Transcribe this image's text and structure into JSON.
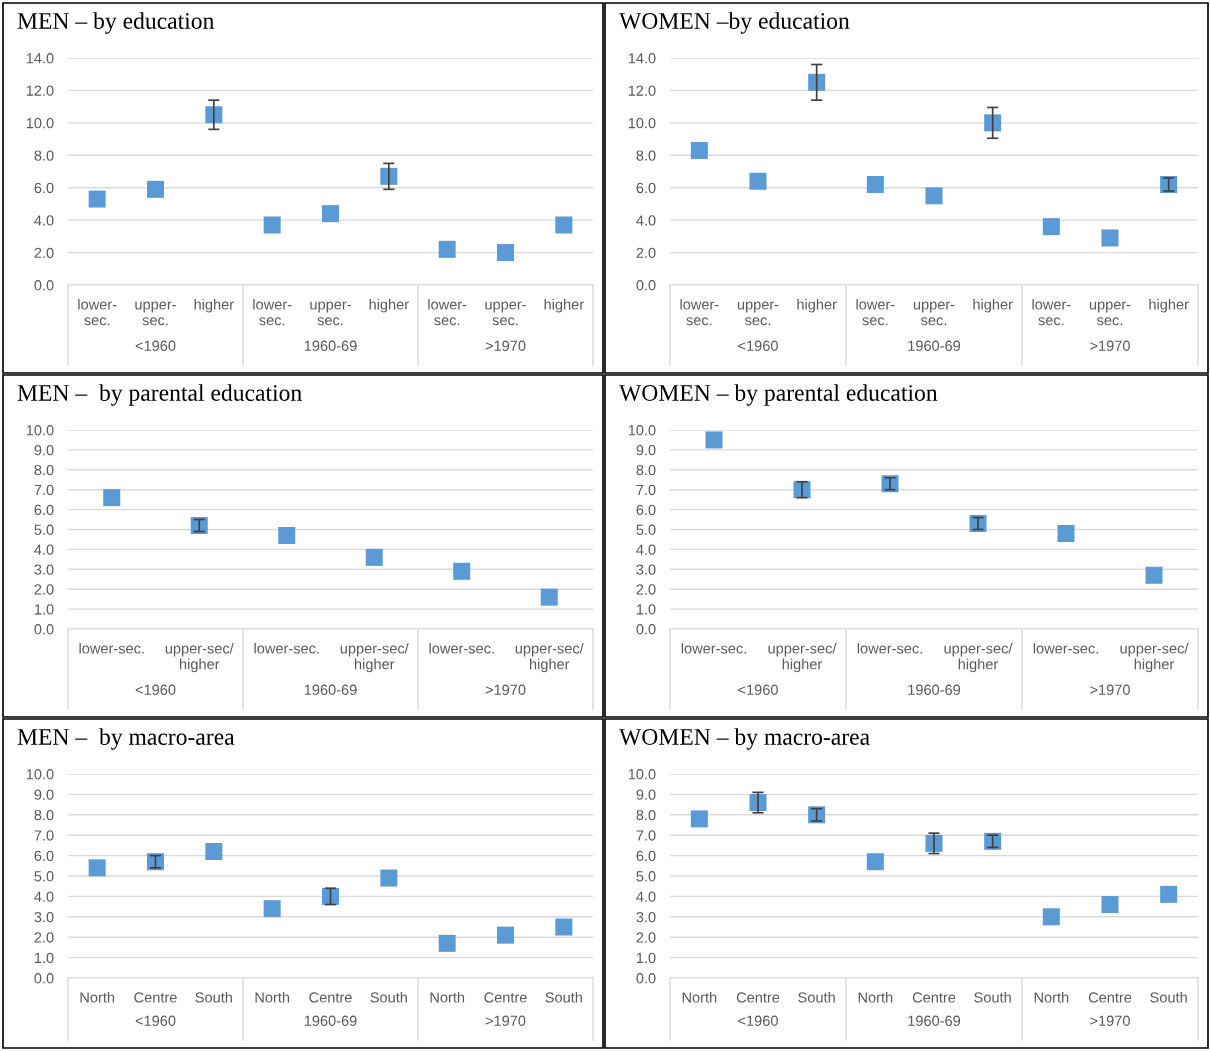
{
  "chart_data": [
    {
      "type": "scatter",
      "title": "MEN – by education",
      "categories": [
        "lower-\nsec.",
        "upper-\nsec.",
        "higher",
        "lower-\nsec.",
        "upper-\nsec.",
        "higher",
        "lower-\nsec.",
        "upper-\nsec.",
        "higher"
      ],
      "values": [
        5.3,
        5.9,
        10.5,
        3.7,
        4.4,
        6.7,
        2.2,
        2.0,
        3.7
      ],
      "errors": [
        null,
        null,
        0.9,
        null,
        null,
        0.8,
        null,
        null,
        null
      ],
      "color": "#5b9bd5",
      "marker": "square",
      "grid": "y",
      "ylim": [
        0,
        14
      ],
      "yticks": [
        {
          "value": 0,
          "label": "0.0"
        },
        {
          "value": 2,
          "label": "2.0"
        },
        {
          "value": 4,
          "label": "4.0"
        },
        {
          "value": 6,
          "label": "6.0"
        },
        {
          "value": 8,
          "label": "8.0"
        },
        {
          "value": 10,
          "label": "10.0"
        },
        {
          "value": 12,
          "label": "12.0"
        },
        {
          "value": 14,
          "label": "14.0"
        }
      ],
      "annotations": [
        "<1960",
        "1960-69",
        ">1970"
      ]
    },
    {
      "type": "scatter",
      "title": "WOMEN –by education",
      "categories": [
        "lower-\nsec.",
        "upper-\nsec.",
        "higher",
        "lower-\nsec.",
        "upper-\nsec.",
        "higher",
        "lower-\nsec.",
        "upper-\nsec.",
        "higher"
      ],
      "values": [
        8.3,
        6.4,
        12.5,
        6.2,
        5.5,
        10.0,
        3.6,
        2.9,
        6.2
      ],
      "errors": [
        null,
        null,
        1.1,
        null,
        null,
        0.95,
        null,
        null,
        0.4
      ],
      "color": "#5b9bd5",
      "marker": "square",
      "grid": "y",
      "ylim": [
        0,
        14
      ],
      "yticks": [
        {
          "value": 0,
          "label": "0.0"
        },
        {
          "value": 2,
          "label": "2.0"
        },
        {
          "value": 4,
          "label": "4.0"
        },
        {
          "value": 6,
          "label": "6.0"
        },
        {
          "value": 8,
          "label": "8.0"
        },
        {
          "value": 10,
          "label": "10.0"
        },
        {
          "value": 12,
          "label": "12.0"
        },
        {
          "value": 14,
          "label": "14.0"
        }
      ],
      "annotations": [
        "<1960",
        "1960-69",
        ">1970"
      ]
    },
    {
      "type": "scatter",
      "title": "MEN –  by parental education",
      "categories": [
        "lower-sec.",
        "upper-sec/\nhigher",
        "lower-sec.",
        "upper-sec/\nhigher",
        "lower-sec.",
        "upper-sec/\nhigher"
      ],
      "values": [
        6.6,
        5.2,
        4.7,
        3.6,
        2.9,
        1.6
      ],
      "errors": [
        null,
        0.3,
        null,
        null,
        null,
        null
      ],
      "color": "#5b9bd5",
      "marker": "square",
      "grid": "y",
      "ylim": [
        0,
        10
      ],
      "yticks": [
        {
          "value": 0,
          "label": "0.0"
        },
        {
          "value": 1,
          "label": "1.0"
        },
        {
          "value": 2,
          "label": "2.0"
        },
        {
          "value": 3,
          "label": "3.0"
        },
        {
          "value": 4,
          "label": "4.0"
        },
        {
          "value": 5,
          "label": "5.0"
        },
        {
          "value": 6,
          "label": "6.0"
        },
        {
          "value": 7,
          "label": "7.0"
        },
        {
          "value": 8,
          "label": "8.0"
        },
        {
          "value": 9,
          "label": "9.0"
        },
        {
          "value": 10,
          "label": "10.0"
        }
      ],
      "annotations": [
        "<1960",
        "1960-69",
        ">1970"
      ]
    },
    {
      "type": "scatter",
      "title": "WOMEN – by parental education",
      "categories": [
        "lower-sec.",
        "upper-sec/\nhigher",
        "lower-sec.",
        "upper-sec/\nhigher",
        "lower-sec.",
        "upper-sec/\nhigher"
      ],
      "values": [
        9.5,
        7.0,
        7.3,
        5.3,
        4.8,
        2.7
      ],
      "errors": [
        null,
        0.4,
        0.3,
        0.3,
        null,
        null
      ],
      "color": "#5b9bd5",
      "marker": "square",
      "grid": "y",
      "ylim": [
        0,
        10
      ],
      "yticks": [
        {
          "value": 0,
          "label": "0.0"
        },
        {
          "value": 1,
          "label": "1.0"
        },
        {
          "value": 2,
          "label": "2.0"
        },
        {
          "value": 3,
          "label": "3.0"
        },
        {
          "value": 4,
          "label": "4.0"
        },
        {
          "value": 5,
          "label": "5.0"
        },
        {
          "value": 6,
          "label": "6.0"
        },
        {
          "value": 7,
          "label": "7.0"
        },
        {
          "value": 8,
          "label": "8.0"
        },
        {
          "value": 9,
          "label": "9.0"
        },
        {
          "value": 10,
          "label": "10.0"
        }
      ],
      "annotations": [
        "<1960",
        "1960-69",
        ">1970"
      ]
    },
    {
      "type": "scatter",
      "title": "MEN –  by macro-area",
      "categories": [
        "North",
        "Centre",
        "South",
        "North",
        "Centre",
        "South",
        "North",
        "Centre",
        "South"
      ],
      "values": [
        5.4,
        5.7,
        6.2,
        3.4,
        4.0,
        4.9,
        1.7,
        2.1,
        2.5
      ],
      "errors": [
        null,
        0.3,
        null,
        null,
        0.4,
        null,
        null,
        null,
        null
      ],
      "color": "#5b9bd5",
      "marker": "square",
      "grid": "y",
      "ylim": [
        0,
        10
      ],
      "yticks": [
        {
          "value": 0,
          "label": "0.0"
        },
        {
          "value": 1,
          "label": "1.0"
        },
        {
          "value": 2,
          "label": "2.0"
        },
        {
          "value": 3,
          "label": "3.0"
        },
        {
          "value": 4,
          "label": "4.0"
        },
        {
          "value": 5,
          "label": "5.0"
        },
        {
          "value": 6,
          "label": "6.0"
        },
        {
          "value": 7,
          "label": "7.0"
        },
        {
          "value": 8,
          "label": "8.0"
        },
        {
          "value": 9,
          "label": "9.0"
        },
        {
          "value": 10,
          "label": "10.0"
        }
      ],
      "annotations": [
        "<1960",
        "1960-69",
        ">1970"
      ]
    },
    {
      "type": "scatter",
      "title": "WOMEN – by macro-area",
      "categories": [
        "North",
        "Centre",
        "South",
        "North",
        "Centre",
        "South",
        "North",
        "Centre",
        "South"
      ],
      "values": [
        7.8,
        8.6,
        8.0,
        5.7,
        6.6,
        6.7,
        3.0,
        3.6,
        4.1
      ],
      "errors": [
        null,
        0.5,
        0.3,
        null,
        0.5,
        0.3,
        null,
        null,
        null
      ],
      "color": "#5b9bd5",
      "marker": "square",
      "grid": "y",
      "ylim": [
        0,
        10
      ],
      "yticks": [
        {
          "value": 0,
          "label": "0.0"
        },
        {
          "value": 1,
          "label": "1.0"
        },
        {
          "value": 2,
          "label": "2.0"
        },
        {
          "value": 3,
          "label": "3.0"
        },
        {
          "value": 4,
          "label": "4.0"
        },
        {
          "value": 5,
          "label": "5.0"
        },
        {
          "value": 6,
          "label": "6.0"
        },
        {
          "value": 7,
          "label": "7.0"
        },
        {
          "value": 8,
          "label": "8.0"
        },
        {
          "value": 9,
          "label": "9.0"
        },
        {
          "value": 10,
          "label": "10.0"
        }
      ],
      "annotations": [
        "<1960",
        "1960-69",
        ">1970"
      ]
    }
  ]
}
